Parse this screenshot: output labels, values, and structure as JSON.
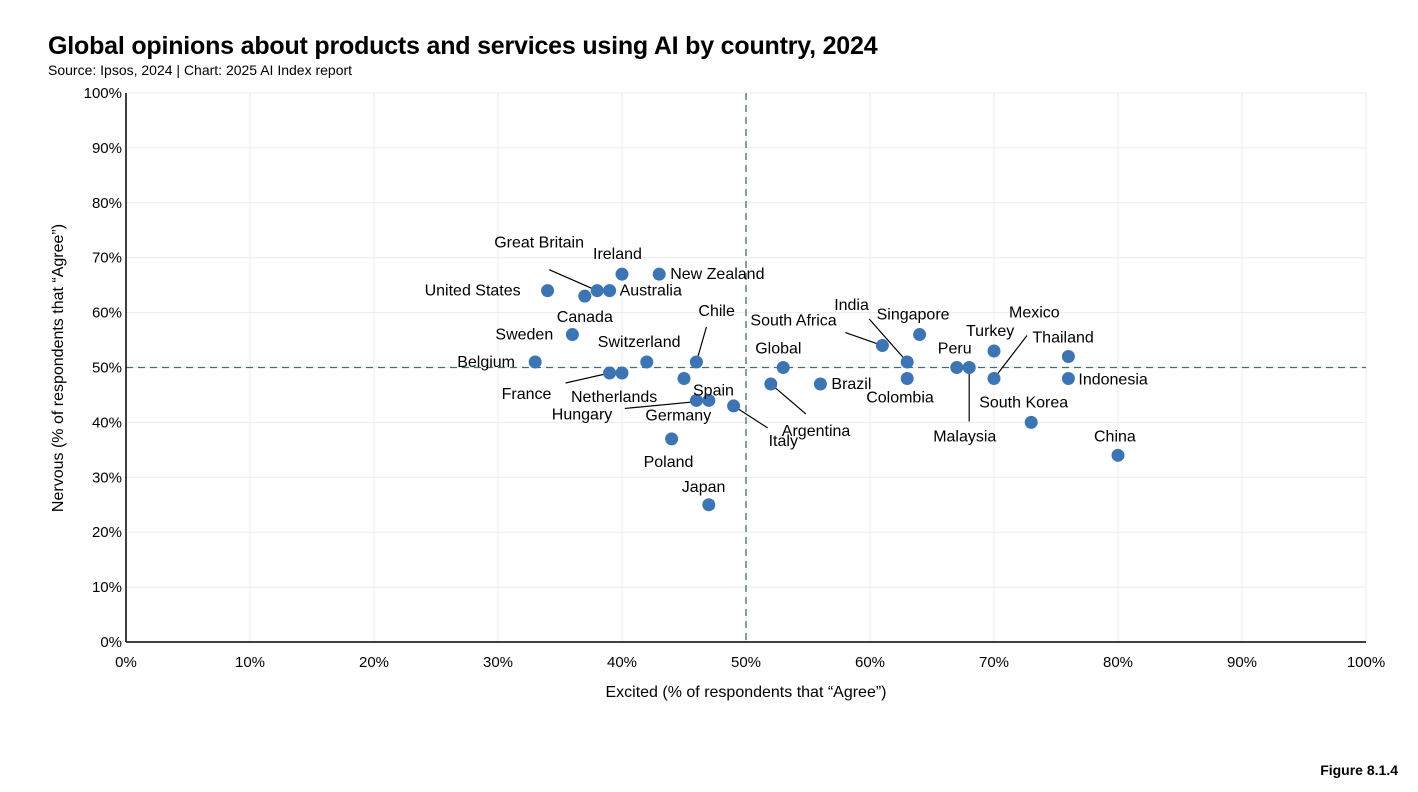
{
  "chart_data": {
    "type": "scatter",
    "title": "Global opinions about products and services using AI by country, 2024",
    "subtitle": "Source: Ipsos, 2024 | Chart: 2025 AI Index report",
    "xlabel": "Excited (% of respondents that “Agree”)",
    "ylabel": "Nervous (% of respondents that “Agree”)",
    "xlim": [
      0,
      100
    ],
    "ylim": [
      0,
      100
    ],
    "x_ticks": [
      0,
      10,
      20,
      30,
      40,
      50,
      60,
      70,
      80,
      90,
      100
    ],
    "y_ticks": [
      0,
      10,
      20,
      30,
      40,
      50,
      60,
      70,
      80,
      90,
      100
    ],
    "tick_suffix": "%",
    "reference_lines": {
      "x": 50,
      "y": 50,
      "style": "dashed"
    },
    "marker_color": "#3c74b4",
    "reference_color": "#3e6f73",
    "grid": true,
    "points": [
      {
        "label": "Great Britain",
        "x": 38,
        "y": 64
      },
      {
        "label": "Ireland",
        "x": 40,
        "y": 67
      },
      {
        "label": "New Zealand",
        "x": 43,
        "y": 67
      },
      {
        "label": "United States",
        "x": 34,
        "y": 64
      },
      {
        "label": "Australia",
        "x": 39,
        "y": 64
      },
      {
        "label": "Canada",
        "x": 37,
        "y": 63
      },
      {
        "label": "Sweden",
        "x": 36,
        "y": 56
      },
      {
        "label": "Switzerland",
        "x": 42,
        "y": 51
      },
      {
        "label": "Chile",
        "x": 46,
        "y": 51
      },
      {
        "label": "Belgium",
        "x": 33,
        "y": 51
      },
      {
        "label": "France",
        "x": 39,
        "y": 49
      },
      {
        "label": "Netherlands",
        "x": 40,
        "y": 49
      },
      {
        "label": "Spain",
        "x": 45,
        "y": 48
      },
      {
        "label": "Hungary",
        "x": 47,
        "y": 44
      },
      {
        "label": "Germany",
        "x": 46,
        "y": 44
      },
      {
        "label": "Poland",
        "x": 44,
        "y": 37
      },
      {
        "label": "Japan",
        "x": 47,
        "y": 25
      },
      {
        "label": "Italy",
        "x": 49,
        "y": 43
      },
      {
        "label": "Argentina",
        "x": 52,
        "y": 47
      },
      {
        "label": "Global",
        "x": 53,
        "y": 50
      },
      {
        "label": "Brazil",
        "x": 56,
        "y": 47
      },
      {
        "label": "South Africa",
        "x": 61,
        "y": 54
      },
      {
        "label": "India",
        "x": 63,
        "y": 51
      },
      {
        "label": "Singapore",
        "x": 64,
        "y": 56
      },
      {
        "label": "Colombia",
        "x": 63,
        "y": 48
      },
      {
        "label": "Peru",
        "x": 67,
        "y": 50
      },
      {
        "label": "Malaysia",
        "x": 68,
        "y": 50
      },
      {
        "label": "Turkey",
        "x": 70,
        "y": 53
      },
      {
        "label": "Mexico",
        "x": 70,
        "y": 48
      },
      {
        "label": "Thailand",
        "x": 76,
        "y": 52
      },
      {
        "label": "Indonesia",
        "x": 76,
        "y": 48
      },
      {
        "label": "South Korea",
        "x": 73,
        "y": 40
      },
      {
        "label": "China",
        "x": 80,
        "y": 34
      }
    ]
  },
  "figure_label": "Figure 8.1.4"
}
